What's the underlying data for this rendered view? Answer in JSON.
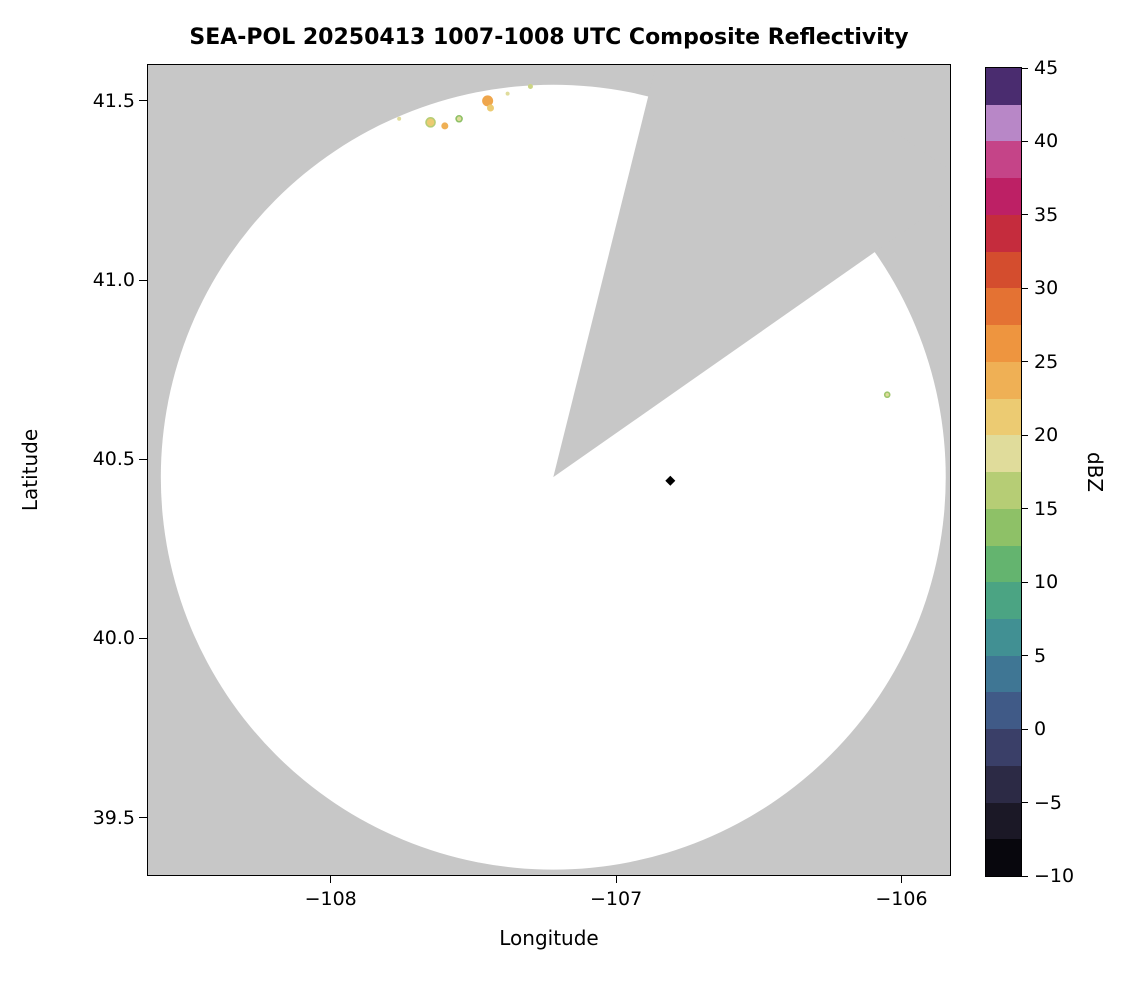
{
  "chart_data": {
    "type": "heatmap",
    "subtype": "radar-composite-reflectivity-map",
    "title": "SEA-POL 20250413 1007-1008 UTC Composite Reflectivity",
    "xlabel": "Longitude",
    "ylabel": "Latitude",
    "xlim": [
      -108.64,
      -105.83
    ],
    "ylim": [
      39.34,
      41.6
    ],
    "grid": false,
    "x_ticks": [
      {
        "v": -108,
        "label": "−108"
      },
      {
        "v": -107,
        "label": "−107"
      },
      {
        "v": -106,
        "label": "−106"
      }
    ],
    "y_ticks": [
      {
        "v": 39.5,
        "label": "39.5"
      },
      {
        "v": 40.0,
        "label": "40.0"
      },
      {
        "v": 40.5,
        "label": "40.5"
      },
      {
        "v": 41.0,
        "label": "41.0"
      },
      {
        "v": 41.5,
        "label": "41.5"
      }
    ],
    "colorbar": {
      "label": "dBZ",
      "vmin": -10,
      "vmax": 45,
      "ticks": [
        {
          "v": 45,
          "label": "45"
        },
        {
          "v": 40,
          "label": "40"
        },
        {
          "v": 35,
          "label": "35"
        },
        {
          "v": 30,
          "label": "30"
        },
        {
          "v": 25,
          "label": "25"
        },
        {
          "v": 20,
          "label": "20"
        },
        {
          "v": 15,
          "label": "15"
        },
        {
          "v": 10,
          "label": "10"
        },
        {
          "v": 5,
          "label": "5"
        },
        {
          "v": 0,
          "label": "0"
        },
        {
          "v": -5,
          "label": "−5"
        },
        {
          "v": -10,
          "label": "−10"
        }
      ],
      "step_dbz": 2.5,
      "colors_bottom_to_top": [
        "#08070d",
        "#1b1826",
        "#2c2a45",
        "#3a3f68",
        "#405a87",
        "#3f7694",
        "#419093",
        "#4ba483",
        "#64b46f",
        "#8ec167",
        "#b6cd75",
        "#e0dc9b",
        "#eccb72",
        "#efb055",
        "#ee953f",
        "#e47233",
        "#d44d2e",
        "#c52c3d",
        "#bd2065",
        "#c54488",
        "#b887c7",
        "#4a2c6f"
      ]
    },
    "coverage": {
      "center_lon": -107.22,
      "center_lat": 40.45,
      "radius_deg_lat": 1.095,
      "missing_sector_azimuth_deg": [
        14,
        55
      ],
      "background_color": "#c7c7c7",
      "coverage_color": "#ffffff"
    },
    "radar_marker": {
      "lon": -106.81,
      "lat": 40.44,
      "shape": "diamond",
      "color": "#000000"
    },
    "echoes": [
      {
        "lon": -107.76,
        "lat": 41.45,
        "dbz": 18,
        "size": 4,
        "color": "#e0dc9b"
      },
      {
        "lon": -107.65,
        "lat": 41.44,
        "dbz": 21,
        "size": 9,
        "color": "#eccb72",
        "ring": "#b6cd75"
      },
      {
        "lon": -107.6,
        "lat": 41.43,
        "dbz": 23,
        "size": 7,
        "color": "#efb055"
      },
      {
        "lon": -107.55,
        "lat": 41.45,
        "dbz": 19,
        "size": 6,
        "color": "#e0dc9b",
        "ring": "#8ec167"
      },
      {
        "lon": -107.45,
        "lat": 41.5,
        "dbz": 24,
        "size": 11,
        "color": "#efa64c"
      },
      {
        "lon": -107.44,
        "lat": 41.48,
        "dbz": 21,
        "size": 7,
        "color": "#eccb72"
      },
      {
        "lon": -107.38,
        "lat": 41.52,
        "dbz": 17,
        "size": 4,
        "color": "#e0dc9b"
      },
      {
        "lon": -107.3,
        "lat": 41.54,
        "dbz": 16,
        "size": 5,
        "color": "#cbd484"
      },
      {
        "lon": -106.05,
        "lat": 40.68,
        "dbz": 18,
        "size": 5,
        "color": "#e0dc9b",
        "ring": "#9ec66c"
      }
    ]
  }
}
